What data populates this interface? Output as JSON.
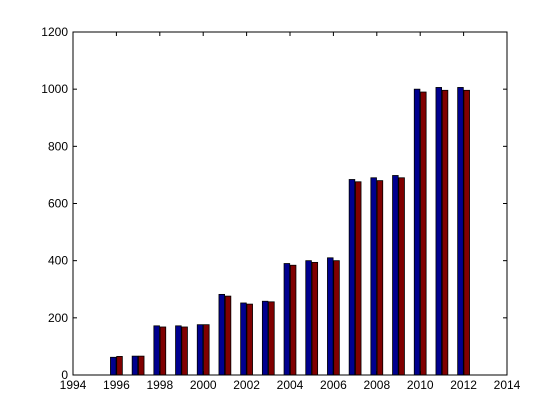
{
  "chart_data": {
    "type": "bar",
    "title": "",
    "xlabel": "",
    "ylabel": "",
    "xlim": [
      1994,
      2014
    ],
    "ylim": [
      0,
      1200
    ],
    "xticks": [
      1994,
      1996,
      1998,
      2000,
      2002,
      2004,
      2006,
      2008,
      2010,
      2012,
      2014
    ],
    "yticks": [
      0,
      200,
      400,
      600,
      800,
      1000,
      1200
    ],
    "grid": false,
    "legend": "none",
    "x": [
      1996,
      1997,
      1998,
      1999,
      2000,
      2001,
      2002,
      2003,
      2004,
      2005,
      2006,
      2007,
      2008,
      2009,
      2010,
      2011,
      2012
    ],
    "series": [
      {
        "color": "#00008f",
        "values": [
          62,
          66,
          172,
          172,
          176,
          282,
          252,
          258,
          390,
          400,
          410,
          684,
          690,
          698,
          1000,
          1006,
          1006
        ]
      },
      {
        "color": "#800000",
        "values": [
          65,
          66,
          168,
          168,
          176,
          276,
          248,
          256,
          384,
          394,
          400,
          676,
          680,
          690,
          990,
          996,
          996
        ]
      }
    ]
  }
}
